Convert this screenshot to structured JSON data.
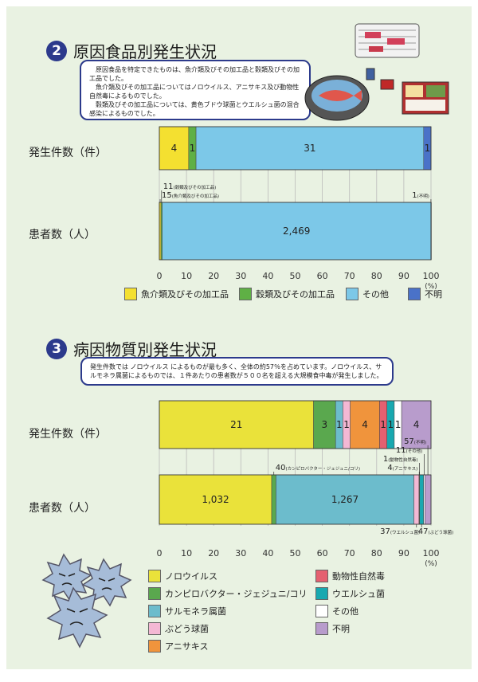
{
  "section2": {
    "number": "2",
    "title": "原因食品別発生状況",
    "note": "　原因食品を特定できたものは、魚介類及びその加工品と穀類及びその加工品でした。\n　魚介類及びその加工品についてはノロウイルス、アニサキス及び動物性自然毒によるものでした。\n　穀類及びその加工品については、黄色ブドウ球菌とウエルシュ菌の混合感染によるものでした。"
  },
  "section3": {
    "number": "3",
    "title": "病因物質別発生状況",
    "note": "発生件数では ノロウイルス によるものが最も多く、全体の約57％を占めています。ノロウイルス、サルモネラ属菌によるものでは、１件あたりの患者数が５００名を超える大規模食中毒が発生しました。"
  },
  "colors": {
    "background": "#e9f2e2",
    "title_circle": "#2c3a8c",
    "seafood": "#f4e030",
    "grain": "#5fb045",
    "other": "#7cc8e8",
    "unknown": "#4a72c8",
    "norovirus": "#eae23a",
    "campylobacter": "#5aa84e",
    "salmonella": "#6cbccc",
    "staph": "#f4b8d4",
    "anisakis": "#f0943c",
    "natural_toxin": "#e56070",
    "welchii": "#18a8b0",
    "other3": "#ffffff",
    "unknown3": "#b89ccc"
  },
  "chart_data": [
    {
      "type": "bar",
      "orientation": "horizontal",
      "stacked": "percent",
      "categories": [
        "発生件数（件）",
        "患者数（人）"
      ],
      "series": [
        {
          "name": "魚介類及びその加工品",
          "values": [
            4,
            15
          ],
          "color_key": "seafood"
        },
        {
          "name": "穀類及びその加工品",
          "values": [
            1,
            11
          ],
          "color_key": "grain"
        },
        {
          "name": "その他",
          "values": [
            31,
            2469
          ],
          "color_key": "other"
        },
        {
          "name": "不明",
          "values": [
            1,
            1
          ],
          "color_key": "unknown"
        }
      ],
      "inside_labels": [
        [
          "4",
          "1",
          "31",
          "1"
        ],
        [
          "",
          "",
          "2,469",
          ""
        ]
      ],
      "callouts": [
        {
          "row": 1,
          "series": 0,
          "value": "15",
          "label": "(魚介類及びその加工品)",
          "side": "above-left"
        },
        {
          "row": 1,
          "series": 1,
          "value": "11",
          "label": "(穀類及びその加工品)",
          "side": "above-left"
        },
        {
          "row": 1,
          "series": 3,
          "value": "1",
          "label": "(不明)",
          "side": "above-right"
        }
      ],
      "xticks": [
        "0",
        "10",
        "20",
        "30",
        "40",
        "50",
        "60",
        "70",
        "80",
        "90",
        "100"
      ],
      "xunit": "(%)",
      "xlim": [
        0,
        100
      ],
      "legend": "bottom"
    },
    {
      "type": "bar",
      "orientation": "horizontal",
      "stacked": "percent",
      "categories": [
        "発生件数（件）",
        "患者数（人）"
      ],
      "series": [
        {
          "name": "ノロウイルス",
          "values": [
            21,
            1032
          ],
          "color_key": "norovirus"
        },
        {
          "name": "カンピロバクター・ジェジュニ/コリ",
          "values": [
            3,
            40
          ],
          "color_key": "campylobacter"
        },
        {
          "name": "サルモネラ属菌",
          "values": [
            1,
            1267
          ],
          "color_key": "salmonella"
        },
        {
          "name": "ぶどう球菌",
          "values": [
            1,
            47
          ],
          "color_key": "staph"
        },
        {
          "name": "アニサキス",
          "values": [
            4,
            4
          ],
          "color_key": "anisakis"
        },
        {
          "name": "動物性自然毒",
          "values": [
            1,
            1
          ],
          "color_key": "natural_toxin"
        },
        {
          "name": "ウエルシュ菌",
          "values": [
            1,
            37
          ],
          "color_key": "welchii"
        },
        {
          "name": "その他",
          "values": [
            1,
            11
          ],
          "color_key": "other3"
        },
        {
          "name": "不明",
          "values": [
            4,
            57
          ],
          "color_key": "unknown3"
        }
      ],
      "inside_labels": [
        [
          "21",
          "3",
          "1",
          "1",
          "4",
          "1",
          "1",
          "1",
          "4"
        ],
        [
          "1,032",
          "",
          "1,267",
          "",
          "",
          "",
          "",
          "",
          ""
        ]
      ],
      "callouts": [
        {
          "row": 1,
          "series": 1,
          "value": "40",
          "label": "(カンピロバクター・ジェジュニ/コリ)",
          "side": "above-left"
        },
        {
          "row": 1,
          "series": 4,
          "value": "4",
          "label": "(アニサキス)",
          "side": "above-right"
        },
        {
          "row": 1,
          "series": 5,
          "value": "1",
          "label": "(動物性自然毒)",
          "side": "above-right"
        },
        {
          "row": 1,
          "series": 7,
          "value": "11",
          "label": "(その他)",
          "side": "above-right"
        },
        {
          "row": 1,
          "series": 8,
          "value": "57",
          "label": "(不明)",
          "side": "above-right"
        },
        {
          "row": 1,
          "series": 3,
          "value": "47",
          "label": "(ぶどう球菌)",
          "side": "below-left"
        },
        {
          "row": 1,
          "series": 6,
          "value": "37",
          "label": "(ウエルシュ菌)",
          "side": "below-right"
        }
      ],
      "xticks": [
        "0",
        "10",
        "20",
        "30",
        "40",
        "50",
        "60",
        "70",
        "80",
        "90",
        "100"
      ],
      "xunit": "(%)",
      "xlim": [
        0,
        100
      ],
      "legend": "bottom"
    }
  ],
  "icons": {
    "food_illustration": "food-plates-illustration",
    "virus_illustration": "angry-virus-illustration"
  }
}
